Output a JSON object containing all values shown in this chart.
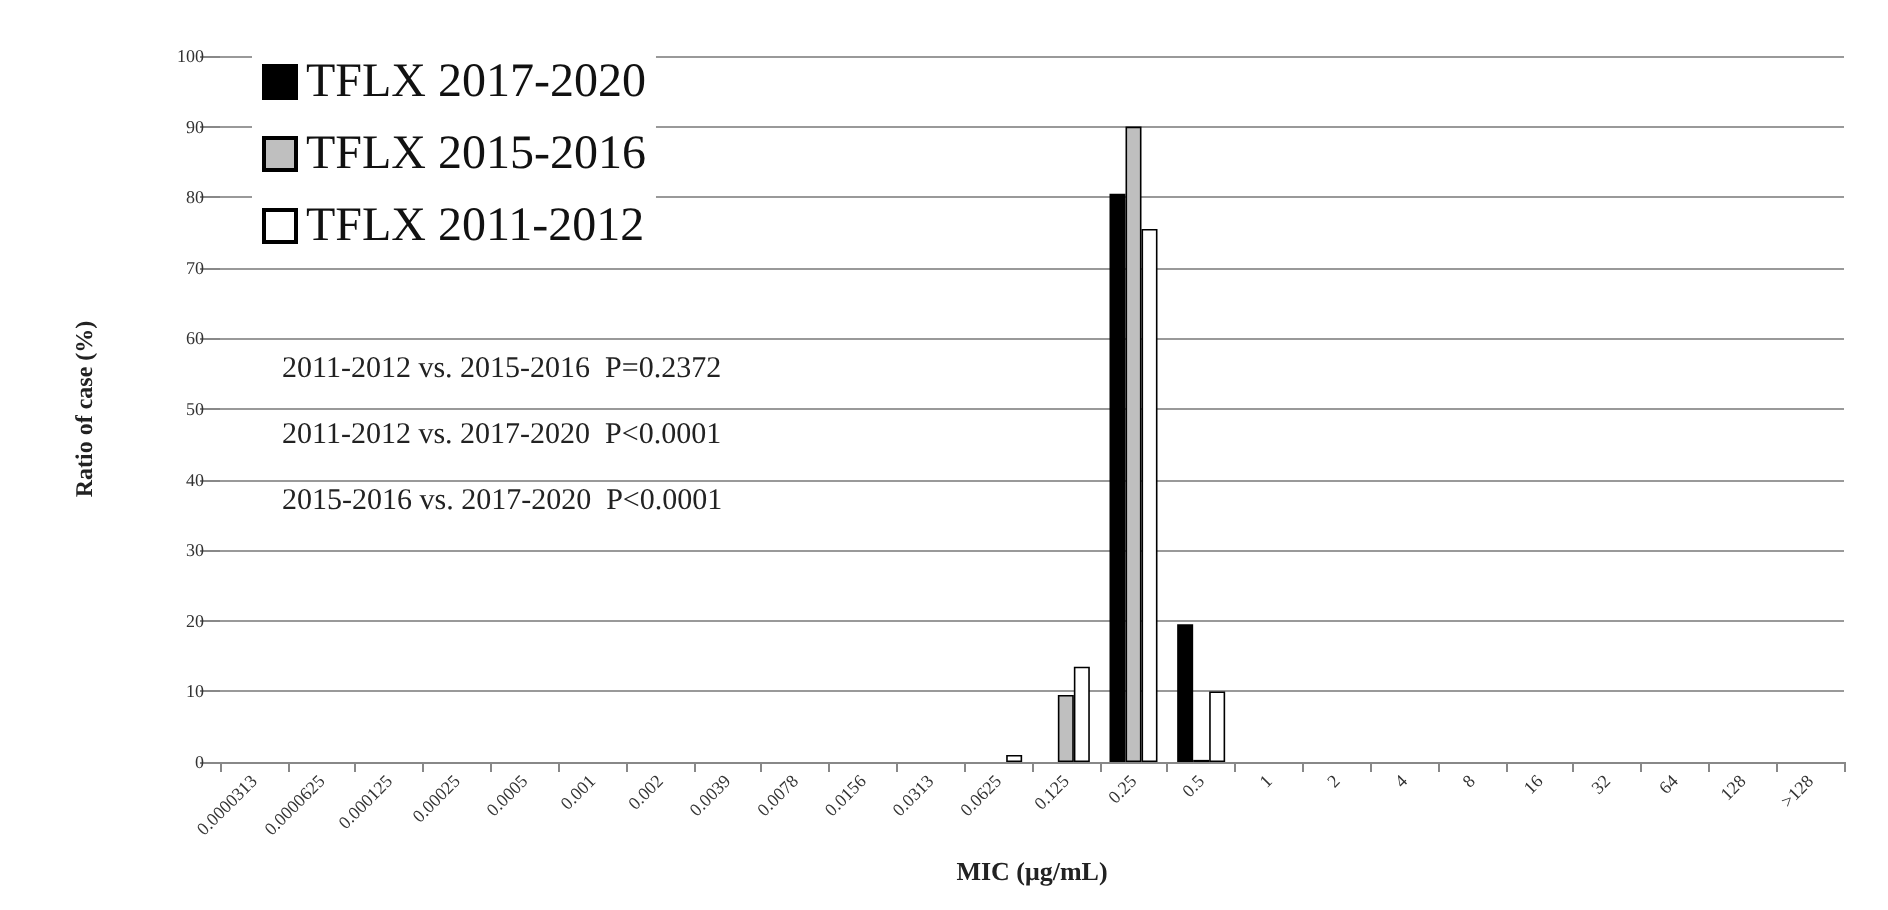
{
  "chart_data": {
    "type": "bar",
    "xlabel": "MIC (μg/mL)",
    "ylabel": "Ratio of case (%)",
    "categories": [
      "0.0000313",
      "0.0000625",
      "0.000125",
      "0.00025",
      "0.0005",
      "0.001",
      "0.002",
      "0.0039",
      "0.0078",
      "0.0156",
      "0.0313",
      "0.0625",
      "0.125",
      "0.25",
      "0.5",
      "1",
      "2",
      "4",
      "8",
      "16",
      "32",
      "64",
      "128",
      ">128"
    ],
    "series": [
      {
        "name": "TFLX 2017-2020",
        "color": "#000000",
        "values": [
          0,
          0,
          0,
          0,
          0,
          0,
          0,
          0,
          0,
          0,
          0,
          0,
          0,
          80.5,
          19.5,
          0,
          0,
          0,
          0,
          0,
          0,
          0,
          0,
          0
        ]
      },
      {
        "name": "TFLX 2015-2016",
        "color": "#bfbfbf",
        "values": [
          0,
          0,
          0,
          0,
          0,
          0,
          0,
          0,
          0,
          0,
          0,
          0,
          9.5,
          90,
          0.3,
          0,
          0,
          0,
          0,
          0,
          0,
          0,
          0,
          0
        ]
      },
      {
        "name": "TFLX 2011-2012",
        "color": "#ffffff",
        "values": [
          0,
          0,
          0,
          0,
          0,
          0,
          0,
          0,
          0,
          0,
          0,
          1,
          13.5,
          75.5,
          10,
          0,
          0,
          0,
          0,
          0,
          0,
          0,
          0,
          0
        ]
      }
    ],
    "ylim": [
      0,
      100
    ],
    "yticks": [
      0,
      10,
      20,
      30,
      40,
      50,
      60,
      70,
      80,
      90,
      100
    ],
    "grid": "y",
    "legend": "top left",
    "annotations": [
      "2011-2012 vs. 2015-2016  P=0.2372",
      "2011-2012 vs. 2017-2020  P<0.0001",
      "2015-2016 vs. 2017-2020  P<0.0001"
    ]
  }
}
